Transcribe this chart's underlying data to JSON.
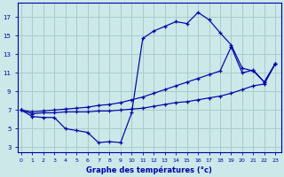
{
  "xlabel": "Graphe des températures (°c)",
  "bg_color": "#cce8e8",
  "grid_color": "#aacccc",
  "line_color": "#0000aa",
  "x_ticks": [
    0,
    1,
    2,
    3,
    4,
    5,
    6,
    7,
    8,
    9,
    10,
    11,
    12,
    13,
    14,
    15,
    16,
    17,
    18,
    19,
    20,
    21,
    22,
    23
  ],
  "y_ticks": [
    3,
    5,
    7,
    9,
    11,
    13,
    15,
    17
  ],
  "xlim": [
    -0.3,
    23.5
  ],
  "ylim": [
    2.5,
    18.5
  ],
  "s1_x": [
    0,
    1,
    2,
    3,
    4,
    5,
    6,
    7,
    8,
    9,
    10,
    11,
    12,
    13,
    14,
    15,
    16,
    17,
    18,
    19,
    20,
    21,
    22,
    23
  ],
  "s1_y": [
    7.0,
    6.3,
    6.2,
    6.2,
    5.0,
    4.8,
    4.6,
    3.5,
    3.6,
    3.5,
    6.7,
    14.7,
    15.5,
    16.0,
    16.5,
    16.3,
    17.5,
    16.7,
    15.3,
    14.0,
    11.5,
    11.2,
    10.0,
    12.0
  ],
  "s2_x": [
    0,
    1,
    2,
    3,
    4,
    5,
    6,
    7,
    8,
    9,
    10,
    11,
    12,
    13,
    14,
    15,
    16,
    17,
    18,
    19,
    20,
    21,
    22,
    23
  ],
  "s2_y": [
    7.0,
    6.8,
    6.9,
    7.0,
    7.1,
    7.2,
    7.3,
    7.5,
    7.6,
    7.8,
    8.1,
    8.4,
    8.8,
    9.2,
    9.6,
    10.0,
    10.4,
    10.8,
    11.2,
    13.8,
    11.0,
    11.3,
    10.0,
    12.0
  ],
  "s3_x": [
    0,
    1,
    2,
    3,
    4,
    5,
    6,
    7,
    8,
    9,
    10,
    11,
    12,
    13,
    14,
    15,
    16,
    17,
    18,
    19,
    20,
    21,
    22,
    23
  ],
  "s3_y": [
    7.0,
    6.6,
    6.7,
    6.7,
    6.8,
    6.8,
    6.8,
    6.9,
    6.9,
    7.0,
    7.1,
    7.2,
    7.4,
    7.6,
    7.8,
    7.9,
    8.1,
    8.3,
    8.5,
    8.8,
    9.2,
    9.6,
    9.8,
    12.0
  ]
}
